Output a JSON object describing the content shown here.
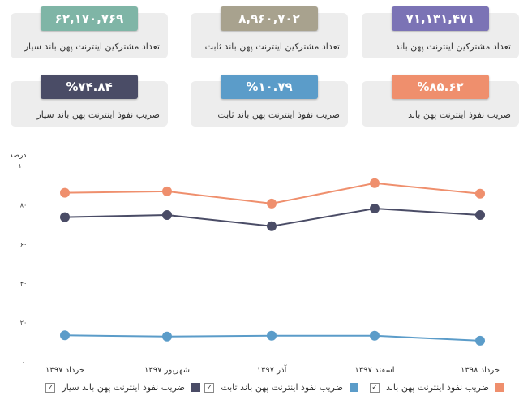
{
  "cards": [
    {
      "value": "۷۱,۱۳۱,۴۷۱",
      "label": "تعداد مشترکین اینترنت پهن باند",
      "color": "#7b73b5"
    },
    {
      "value": "۸,۹۶۰,۷۰۲",
      "label": "تعداد مشترکین اینترنت پهن باند ثابت",
      "color": "#a8a28e"
    },
    {
      "value": "۶۲,۱۷۰,۷۶۹",
      "label": "تعداد مشترکین اینترنت پهن باند سیار",
      "color": "#7fb5a6"
    },
    {
      "value": "%۸۵.۶۲",
      "label": "ضریب نفوذ اینترنت پهن باند",
      "color": "#ef8f6d"
    },
    {
      "value": "%۱۰.۷۹",
      "label": "ضریب نفوذ اینترنت پهن باند ثابت",
      "color": "#5b9cc9"
    },
    {
      "value": "%۷۴.۸۴",
      "label": "ضریب نفوذ اینترنت پهن باند سیار",
      "color": "#4a4c66"
    }
  ],
  "chart_data": {
    "type": "line",
    "ylabel": "درصد",
    "ylim": [
      0,
      100
    ],
    "yticks": [
      "۰",
      "۲۰",
      "۴۰",
      "۶۰",
      "۸۰",
      "۱۰۰"
    ],
    "categories": [
      "خرداد ۱۳۹۷",
      "شهریور ۱۳۹۷",
      "آذر ۱۳۹۷",
      "اسفند ۱۳۹۷",
      "خرداد ۱۳۹۸"
    ],
    "grid": false,
    "legend_position": "bottom",
    "series": [
      {
        "name": "ضریب نفوذ اینترنت پهن باند",
        "color": "#ef8f6d",
        "values": [
          86.1,
          86.8,
          80.6,
          91.0,
          85.6
        ]
      },
      {
        "name": "ضریب نفوذ اینترنت پهن باند سیار",
        "color": "#4a4c66",
        "values": [
          73.7,
          74.8,
          69.1,
          78.1,
          74.8
        ]
      },
      {
        "name": "ضریب نفوذ اینترنت پهن باند ثابت",
        "color": "#5b9cc9",
        "values": [
          13.5,
          12.9,
          13.3,
          13.3,
          10.8
        ]
      }
    ]
  }
}
